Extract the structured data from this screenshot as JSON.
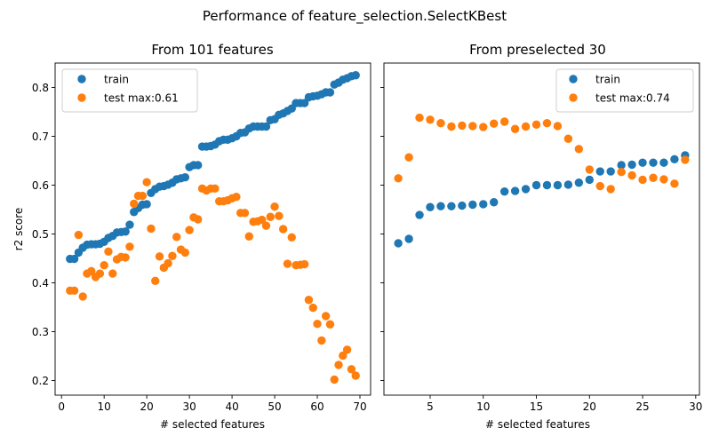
{
  "figure": {
    "suptitle": "Performance of feature_selection.SelectKBest"
  },
  "colors": {
    "train": "#1f77b4",
    "test": "#ff7f0e"
  },
  "chart_data": [
    {
      "type": "scatter",
      "title": "From 101 features",
      "xlabel": "# selected features",
      "ylabel": "r2 score",
      "xlim": [
        -1.5,
        72.5
      ],
      "ylim": [
        0.17,
        0.85
      ],
      "xticks": [
        0,
        10,
        20,
        30,
        40,
        50,
        60,
        70
      ],
      "yticks": [
        0.2,
        0.3,
        0.4,
        0.5,
        0.6,
        0.7,
        0.8
      ],
      "ytick_labels": [
        "0.2",
        "0.3",
        "0.4",
        "0.5",
        "0.6",
        "0.7",
        "0.8"
      ],
      "legend": {
        "position": "upper-left",
        "entries": [
          "train",
          "test max:0.61"
        ]
      },
      "series": [
        {
          "name": "train",
          "color": "#1f77b4",
          "x": [
            2,
            3,
            4,
            5,
            6,
            7,
            8,
            9,
            10,
            11,
            12,
            13,
            14,
            15,
            16,
            17,
            18,
            19,
            20,
            21,
            22,
            23,
            24,
            25,
            26,
            27,
            28,
            29,
            30,
            31,
            32,
            33,
            34,
            35,
            36,
            37,
            38,
            39,
            40,
            41,
            42,
            43,
            44,
            45,
            46,
            47,
            48,
            49,
            50,
            51,
            52,
            53,
            54,
            55,
            56,
            57,
            58,
            59,
            60,
            61,
            62,
            63,
            64,
            65,
            66,
            67,
            68,
            69
          ],
          "y": [
            0.449,
            0.449,
            0.462,
            0.472,
            0.478,
            0.479,
            0.479,
            0.48,
            0.484,
            0.492,
            0.496,
            0.503,
            0.504,
            0.505,
            0.519,
            0.545,
            0.553,
            0.56,
            0.561,
            0.584,
            0.592,
            0.597,
            0.598,
            0.601,
            0.605,
            0.612,
            0.614,
            0.616,
            0.637,
            0.641,
            0.641,
            0.679,
            0.679,
            0.68,
            0.683,
            0.69,
            0.693,
            0.693,
            0.696,
            0.7,
            0.707,
            0.708,
            0.716,
            0.72,
            0.72,
            0.72,
            0.72,
            0.733,
            0.735,
            0.744,
            0.747,
            0.752,
            0.757,
            0.768,
            0.768,
            0.768,
            0.78,
            0.782,
            0.783,
            0.786,
            0.79,
            0.79,
            0.806,
            0.81,
            0.816,
            0.819,
            0.823,
            0.825
          ]
        },
        {
          "name": "test max:0.61",
          "color": "#ff7f0e",
          "x": [
            2,
            3,
            4,
            5,
            6,
            7,
            8,
            9,
            10,
            11,
            12,
            13,
            14,
            15,
            16,
            17,
            18,
            19,
            20,
            21,
            22,
            23,
            24,
            25,
            26,
            27,
            28,
            29,
            30,
            31,
            32,
            33,
            34,
            35,
            36,
            37,
            38,
            39,
            40,
            41,
            42,
            43,
            44,
            45,
            46,
            47,
            48,
            49,
            50,
            51,
            52,
            53,
            54,
            55,
            56,
            57,
            58,
            59,
            60,
            61,
            62,
            63,
            64,
            65,
            66,
            67,
            68,
            69
          ],
          "y": [
            0.384,
            0.384,
            0.498,
            0.372,
            0.419,
            0.424,
            0.412,
            0.419,
            0.436,
            0.464,
            0.419,
            0.448,
            0.453,
            0.452,
            0.474,
            0.562,
            0.578,
            0.578,
            0.606,
            0.511,
            0.404,
            0.454,
            0.431,
            0.44,
            0.455,
            0.494,
            0.468,
            0.462,
            0.508,
            0.534,
            0.53,
            0.593,
            0.589,
            0.593,
            0.593,
            0.567,
            0.567,
            0.569,
            0.573,
            0.576,
            0.543,
            0.543,
            0.495,
            0.525,
            0.526,
            0.529,
            0.517,
            0.535,
            0.556,
            0.537,
            0.51,
            0.439,
            0.493,
            0.436,
            0.437,
            0.438,
            0.365,
            0.349,
            0.316,
            0.282,
            0.332,
            0.315,
            0.202,
            0.232,
            0.251,
            0.263,
            0.223,
            0.21
          ]
        }
      ]
    },
    {
      "type": "scatter",
      "title": "From preselected 30",
      "xlabel": "# selected features",
      "ylabel": "",
      "xlim": [
        0.65,
        30.35
      ],
      "ylim": [
        0.17,
        0.85
      ],
      "xticks": [
        5,
        10,
        15,
        20,
        25,
        30
      ],
      "yticks": [
        0.2,
        0.3,
        0.4,
        0.5,
        0.6,
        0.7,
        0.8
      ],
      "legend": {
        "position": "upper-right",
        "entries": [
          "train",
          "test max:0.74"
        ]
      },
      "series": [
        {
          "name": "train",
          "color": "#1f77b4",
          "x": [
            2,
            3,
            4,
            5,
            6,
            7,
            8,
            9,
            10,
            11,
            12,
            13,
            14,
            15,
            16,
            17,
            18,
            19,
            20,
            21,
            22,
            23,
            24,
            25,
            26,
            27,
            28,
            29
          ],
          "y": [
            0.481,
            0.49,
            0.539,
            0.555,
            0.557,
            0.557,
            0.558,
            0.56,
            0.561,
            0.565,
            0.587,
            0.588,
            0.592,
            0.6,
            0.6,
            0.6,
            0.601,
            0.605,
            0.611,
            0.628,
            0.628,
            0.641,
            0.642,
            0.646,
            0.646,
            0.646,
            0.653,
            0.661
          ]
        },
        {
          "name": "test max:0.74",
          "color": "#ff7f0e",
          "x": [
            2,
            3,
            4,
            5,
            6,
            7,
            8,
            9,
            10,
            11,
            12,
            13,
            14,
            15,
            16,
            17,
            18,
            19,
            20,
            21,
            22,
            23,
            24,
            25,
            26,
            27,
            28,
            29
          ],
          "y": [
            0.614,
            0.657,
            0.738,
            0.734,
            0.727,
            0.72,
            0.722,
            0.721,
            0.719,
            0.726,
            0.73,
            0.715,
            0.72,
            0.724,
            0.727,
            0.721,
            0.695,
            0.674,
            0.632,
            0.598,
            0.592,
            0.627,
            0.62,
            0.611,
            0.615,
            0.612,
            0.603,
            0.652
          ]
        }
      ]
    }
  ]
}
